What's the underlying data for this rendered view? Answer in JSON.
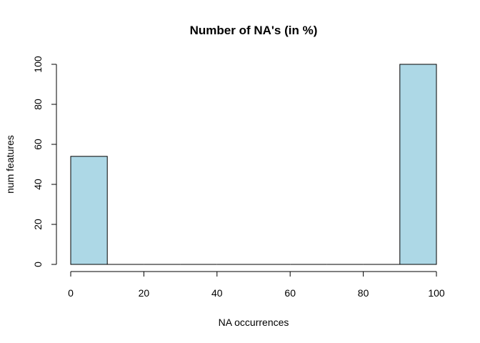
{
  "chart_data": {
    "type": "bar",
    "title": "Number of NA's (in %)",
    "xlabel": "NA occurrences",
    "ylabel": "num features",
    "xlim": [
      0,
      100
    ],
    "ylim": [
      0,
      100
    ],
    "x_ticks": [
      0,
      20,
      40,
      60,
      80,
      100
    ],
    "y_ticks": [
      0,
      20,
      40,
      60,
      80,
      100
    ],
    "bin_edges": [
      0,
      10,
      20,
      30,
      40,
      50,
      60,
      70,
      80,
      90,
      100
    ],
    "values": [
      54,
      0,
      0,
      0,
      0,
      0,
      0,
      0,
      0,
      100
    ],
    "bar_color": "#add8e6",
    "bar_border_color": "#000000",
    "grid": false
  }
}
